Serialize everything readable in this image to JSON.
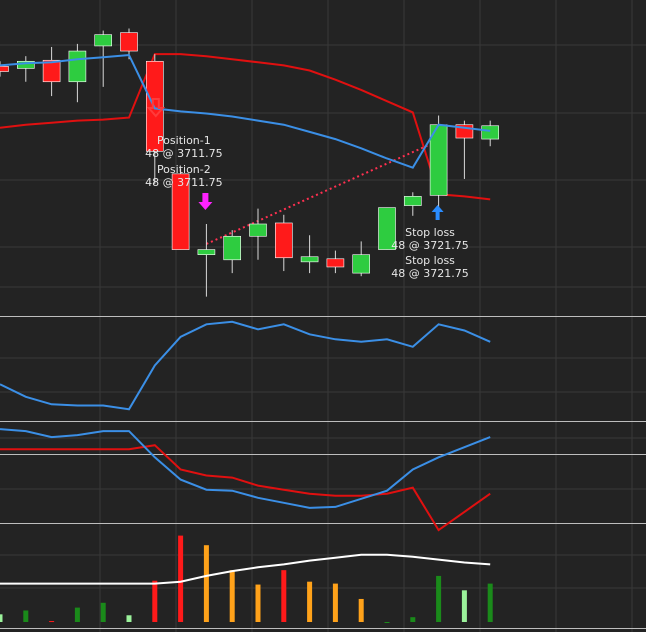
{
  "colors": {
    "background": "#232323",
    "grid": "#383838",
    "separator": "#bdbdbd",
    "bull": "#2ecc40",
    "bear": "#ff1a1a",
    "wick": "#d8d8d8",
    "blue_line": "#3b8fe6",
    "red_line": "#e01010",
    "white_line": "#ffffff",
    "sell_marker": "#ff3b3b",
    "entry_marker": "#ff22ff",
    "exit_marker": "#2a8cff",
    "trade_line": "#ff3050",
    "vol_orange": "#ffa21a",
    "vol_red": "#ff1a1a",
    "vol_dkgreen": "#1a8a1a",
    "vol_ltgreen": "#9bf29b"
  },
  "trades": {
    "position1_label": "Position-1",
    "position1_detail": "48 @ 3711.75",
    "position2_label": "Position-2",
    "position2_detail": "48 @ 3711.75",
    "stop1_label": "Stop loss",
    "stop1_detail": "48 @ 3721.75",
    "stop2_label": "Stop loss",
    "stop2_detail": "48 @ 3721.75"
  },
  "chart_data": {
    "type": "candlestick",
    "panels": [
      "price",
      "oscillator",
      "crossover",
      "volume"
    ],
    "grid": true,
    "candles": [
      {
        "open": 3722.5,
        "high": 3723.0,
        "low": 3721.5,
        "close": 3722.0
      },
      {
        "open": 3722.3,
        "high": 3723.5,
        "low": 3721.0,
        "close": 3723.0
      },
      {
        "open": 3723.1,
        "high": 3724.4,
        "low": 3719.6,
        "close": 3721.0
      },
      {
        "open": 3721.0,
        "high": 3724.7,
        "low": 3719.0,
        "close": 3724.0
      },
      {
        "open": 3724.5,
        "high": 3726.0,
        "low": 3720.5,
        "close": 3725.6
      },
      {
        "open": 3725.8,
        "high": 3726.2,
        "low": 3723.2,
        "close": 3724.0
      },
      {
        "open": 3723.0,
        "high": 3723.7,
        "low": 3711.0,
        "close": 3714.2
      },
      {
        "open": 3712.0,
        "high": 3712.5,
        "low": 3704.6,
        "close": 3704.6
      },
      {
        "open": 3704.1,
        "high": 3707.1,
        "low": 3700.0,
        "close": 3704.6
      },
      {
        "open": 3703.6,
        "high": 3706.5,
        "low": 3702.3,
        "close": 3705.9
      },
      {
        "open": 3705.9,
        "high": 3708.6,
        "low": 3703.6,
        "close": 3707.1
      },
      {
        "open": 3707.2,
        "high": 3708.0,
        "low": 3702.5,
        "close": 3703.8
      },
      {
        "open": 3703.4,
        "high": 3706.0,
        "low": 3702.3,
        "close": 3703.9
      },
      {
        "open": 3703.7,
        "high": 3704.5,
        "low": 3702.3,
        "close": 3702.9
      },
      {
        "open": 3702.3,
        "high": 3705.4,
        "low": 3702.0,
        "close": 3704.1
      },
      {
        "open": 3704.6,
        "high": 3708.7,
        "low": 3704.6,
        "close": 3708.7
      },
      {
        "open": 3708.9,
        "high": 3710.2,
        "low": 3707.9,
        "close": 3709.8
      },
      {
        "open": 3709.9,
        "high": 3717.7,
        "low": 3708.2,
        "close": 3716.8
      },
      {
        "open": 3716.8,
        "high": 3717.2,
        "low": 3711.5,
        "close": 3715.5
      },
      {
        "open": 3715.4,
        "high": 3717.2,
        "low": 3714.7,
        "close": 3716.7
      }
    ],
    "blue_line": [
      3722.6,
      3722.8,
      3722.9,
      3723.2,
      3723.4,
      3723.6,
      3718.4,
      3718.1,
      3717.9,
      3717.6,
      3717.2,
      3716.8,
      3716.1,
      3715.4,
      3714.5,
      3713.5,
      3712.6,
      3716.8,
      3716.5,
      3716.2
    ],
    "red_line": [
      3716.5,
      3716.8,
      3717.0,
      3717.2,
      3717.3,
      3717.5,
      3723.7,
      3723.7,
      3723.5,
      3723.2,
      3722.9,
      3722.6,
      3722.1,
      3721.2,
      3720.2,
      3719.1,
      3718.0,
      3710.0,
      3709.8,
      3709.5
    ],
    "oscillator": [
      22,
      12,
      6,
      5,
      5,
      2,
      37,
      60,
      70,
      72,
      66,
      70,
      62,
      58,
      56,
      58,
      52,
      70,
      65,
      56
    ],
    "crossover_blue": [
      70,
      68,
      62,
      64,
      68,
      68,
      42,
      20,
      10,
      9,
      2,
      -3,
      -8,
      -7,
      1,
      9,
      30,
      42,
      52,
      62
    ],
    "crossover_red": [
      50,
      50,
      50,
      50,
      50,
      50,
      54,
      30,
      24,
      22,
      14,
      10,
      6,
      4,
      4,
      6,
      12,
      -30,
      -12,
      6
    ],
    "volume": [
      {
        "value": 8,
        "color": "ltgreen"
      },
      {
        "value": 12,
        "color": "dkgreen"
      },
      {
        "value": 1,
        "color": "red"
      },
      {
        "value": 15,
        "color": "dkgreen"
      },
      {
        "value": 20,
        "color": "dkgreen"
      },
      {
        "value": 7,
        "color": "ltgreen"
      },
      {
        "value": 43,
        "color": "red"
      },
      {
        "value": 90,
        "color": "red"
      },
      {
        "value": 80,
        "color": "orange"
      },
      {
        "value": 54,
        "color": "orange"
      },
      {
        "value": 39,
        "color": "orange"
      },
      {
        "value": 54,
        "color": "red"
      },
      {
        "value": 42,
        "color": "orange"
      },
      {
        "value": 40,
        "color": "orange"
      },
      {
        "value": 24,
        "color": "orange"
      },
      {
        "value": 0,
        "color": "dkgreen"
      },
      {
        "value": 5,
        "color": "dkgreen"
      },
      {
        "value": 48,
        "color": "dkgreen"
      },
      {
        "value": 33,
        "color": "ltgreen"
      },
      {
        "value": 40,
        "color": "dkgreen"
      }
    ],
    "volume_avg": [
      40,
      40,
      40,
      40,
      40,
      40,
      40,
      42,
      48,
      53,
      57,
      60,
      64,
      67,
      70,
      70,
      68,
      65,
      62,
      60
    ],
    "entries": [
      {
        "label": "Position-1",
        "bar": 7,
        "price": 3711.75,
        "side": "sell"
      },
      {
        "label": "Position-2",
        "bar": 8,
        "price": 3711.75,
        "side": "sell"
      }
    ],
    "exits": [
      {
        "label": "Stop loss",
        "bar": 17,
        "price": 3721.75
      },
      {
        "label": "Stop loss",
        "bar": 17,
        "price": 3721.75
      }
    ]
  }
}
